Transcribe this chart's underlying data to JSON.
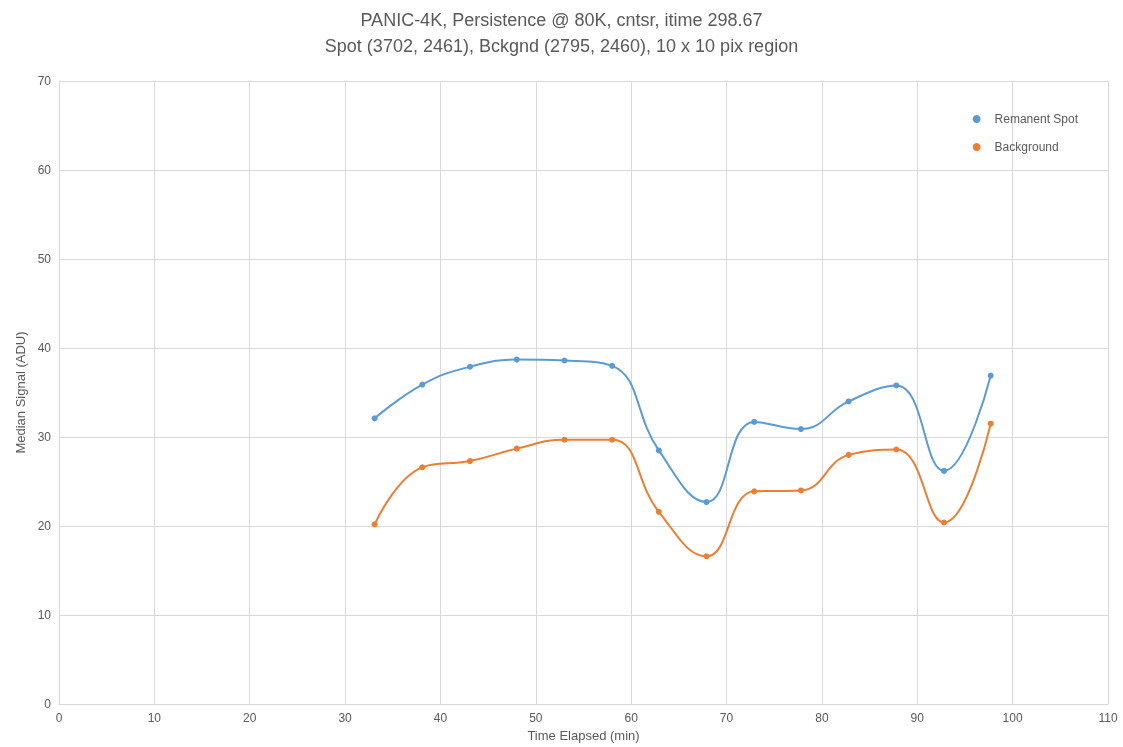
{
  "chart_data": {
    "type": "line",
    "title": "PANIC-4K, Persistence @ 80K, cntsr, itime 298.67",
    "subtitle": "Spot (3702, 2461), Bckgnd (2795, 2460), 10 x 10 pix region",
    "xlabel": "Time Elapsed (min)",
    "ylabel": "Median Signal (ADU)",
    "x": [
      33.1,
      38.1,
      43.1,
      48.0,
      53.0,
      58.0,
      62.9,
      67.9,
      72.9,
      77.8,
      82.8,
      87.8,
      92.8,
      97.7
    ],
    "series": [
      {
        "name": "Remanent Spot",
        "color": "#5b9bd5",
        "values": [
          32.1,
          35.9,
          37.9,
          38.7,
          38.6,
          38.0,
          28.5,
          22.7,
          31.7,
          30.9,
          34.0,
          35.8,
          26.2,
          36.9
        ]
      },
      {
        "name": "Background",
        "color": "#ed7d31",
        "values": [
          20.2,
          26.6,
          27.3,
          28.7,
          29.7,
          29.7,
          21.6,
          16.6,
          23.9,
          24.0,
          28.0,
          28.6,
          20.4,
          31.5
        ]
      }
    ],
    "xlim": [
      0,
      110
    ],
    "xticks": [
      0,
      10,
      20,
      30,
      40,
      50,
      60,
      70,
      80,
      90,
      100,
      110
    ],
    "ylim": [
      0,
      70
    ],
    "yticks": [
      0,
      10,
      20,
      30,
      40,
      50,
      60,
      70
    ],
    "grid": true,
    "legend": "top right",
    "marker": "circle",
    "line_style": "solid"
  }
}
